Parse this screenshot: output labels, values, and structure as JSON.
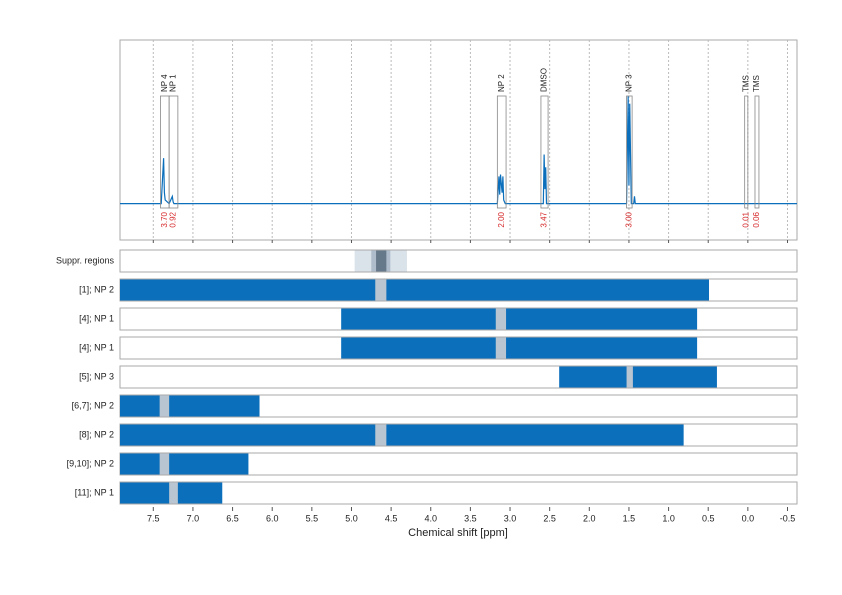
{
  "chart_data": {
    "type": "line",
    "xlabel": "Chemical shift [ppm]",
    "xlim": [
      7.92,
      -0.62
    ],
    "ylim": [
      -0.2,
      0.9
    ],
    "xticks": [
      7.5,
      {
        "value": 7,
        "label": "7.0"
      },
      6.5,
      {
        "value": 6,
        "label": "6.0"
      },
      5.5,
      {
        "value": 5,
        "label": "5.0"
      },
      4.5,
      {
        "value": 4,
        "label": "4.0"
      },
      3.5,
      {
        "value": 3,
        "label": "3.0"
      },
      2.5,
      {
        "value": 2,
        "label": "2.0"
      },
      1.5,
      {
        "value": 1,
        "label": "1.0"
      },
      0.5,
      {
        "value": 0,
        "label": "0.0"
      },
      -0.5
    ],
    "grid": true,
    "color": "#0b6fbc",
    "spectrum": {
      "x": [
        7.92,
        7.4,
        7.37,
        7.36,
        7.35,
        7.3,
        7.26,
        7.25,
        7.24,
        3.16,
        3.14,
        3.13,
        3.12,
        3.1,
        3.09,
        3.08,
        3.06,
        2.58,
        2.57,
        2.56,
        2.55,
        2.54,
        1.53,
        1.51,
        1.5,
        1.49,
        1.47,
        1.44,
        1.43,
        1.42,
        -0.62
      ],
      "values": [
        0,
        0,
        0.25,
        0.06,
        0.02,
        0,
        0.04,
        0.01,
        0,
        0,
        0.15,
        0.05,
        0.16,
        0.06,
        0.15,
        0.02,
        0,
        0,
        0.27,
        0.08,
        0.2,
        0,
        0,
        0.59,
        0.1,
        0.55,
        0,
        0,
        0.04,
        0,
        0
      ]
    },
    "peaks": {
      "labels": [
        "NP 4",
        "NP 1",
        "NP 2",
        "DMSO",
        "NP 3",
        "TMS",
        "TMS"
      ],
      "from": [
        7.41,
        7.3,
        3.16,
        2.61,
        1.53,
        0.04,
        -0.09
      ],
      "to": [
        7.3,
        7.19,
        3.05,
        2.52,
        1.46,
        0.0,
        -0.14
      ],
      "values": [
        3.7,
        0.92,
        2.0,
        3.47,
        3.0,
        0.01,
        0.06
      ],
      "value_labels": [
        "3.70",
        "0.92",
        "2.00",
        "3.47",
        "3.00",
        "0.01",
        "0.06"
      ]
    },
    "suppression": {
      "label": "Suppr. regions",
      "bands": [
        {
          "from": 4.96,
          "to": 4.3,
          "color": "#dbe3ea"
        },
        {
          "from": 4.75,
          "to": 4.51,
          "color": "#aebccb"
        },
        {
          "from": 4.69,
          "to": 4.56,
          "color": "#66798b"
        }
      ]
    },
    "rows": [
      {
        "label": "[1]; NP 2",
        "from": 7.92,
        "to": 0.49,
        "gaps": [
          [
            4.7,
            4.56
          ]
        ]
      },
      {
        "label": "[4]; NP 1",
        "from": 5.13,
        "to": 0.64,
        "gaps": [
          [
            3.18,
            3.05
          ]
        ]
      },
      {
        "label": "[4]; NP 1",
        "from": 5.13,
        "to": 0.64,
        "gaps": [
          [
            3.18,
            3.05
          ]
        ]
      },
      {
        "label": "[5]; NP 3",
        "from": 2.38,
        "to": 0.39,
        "gaps": [
          [
            1.53,
            1.45
          ]
        ]
      },
      {
        "label": "[6,7]; NP 2",
        "from": 7.92,
        "to": 6.16,
        "gaps": [
          [
            7.42,
            7.3
          ]
        ]
      },
      {
        "label": "[8]; NP 2",
        "from": 7.92,
        "to": 0.81,
        "gaps": [
          [
            4.7,
            4.56
          ]
        ]
      },
      {
        "label": "[9,10]; NP 2",
        "from": 7.92,
        "to": 6.3,
        "gaps": [
          [
            7.42,
            7.3
          ]
        ]
      },
      {
        "label": "[11]; NP 1",
        "from": 7.92,
        "to": 6.63,
        "gaps": [
          [
            7.3,
            7.19
          ]
        ]
      }
    ]
  }
}
